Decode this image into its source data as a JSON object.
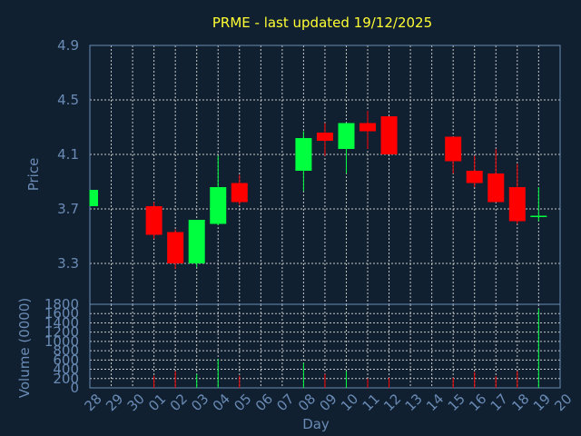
{
  "chart_data": {
    "type": "candlestick",
    "title": "PRME - last updated 19/12/2025",
    "xlabel": "Day",
    "price_panel": {
      "ylabel": "Price",
      "ylim": [
        3.0,
        4.9
      ],
      "yticks": [
        "4.9",
        "4.5",
        "4.1",
        "3.7",
        "3.3"
      ],
      "grid": true
    },
    "volume_panel": {
      "ylabel": "Volume (0000)",
      "ylim": [
        0,
        1800
      ],
      "yticks": [
        "1800",
        "1600",
        "1400",
        "1200",
        "1000",
        "800",
        "600",
        "400",
        "200",
        "0"
      ],
      "grid": true
    },
    "x_labels": [
      "28",
      "29",
      "30",
      "01",
      "02",
      "03",
      "04",
      "05",
      "06",
      "07",
      "08",
      "09",
      "10",
      "11",
      "12",
      "13",
      "14",
      "15",
      "16",
      "17",
      "18",
      "19",
      "20"
    ],
    "candles": [
      {
        "day": "28",
        "open": 3.72,
        "close": 3.84,
        "high": 3.84,
        "low": 3.72,
        "volume": 0
      },
      {
        "day": "01",
        "open": 3.72,
        "close": 3.51,
        "high": 3.75,
        "low": 3.48,
        "volume": 260
      },
      {
        "day": "02",
        "open": 3.53,
        "close": 3.3,
        "high": 3.55,
        "low": 3.26,
        "volume": 360
      },
      {
        "day": "03",
        "open": 3.3,
        "close": 3.62,
        "high": 3.62,
        "low": 3.27,
        "volume": 300
      },
      {
        "day": "04",
        "open": 3.59,
        "close": 3.86,
        "high": 4.09,
        "low": 3.58,
        "volume": 620
      },
      {
        "day": "05",
        "open": 3.89,
        "close": 3.75,
        "high": 3.95,
        "low": 3.73,
        "volume": 260
      },
      {
        "day": "08",
        "open": 3.98,
        "close": 4.22,
        "high": 4.27,
        "low": 3.83,
        "volume": 540
      },
      {
        "day": "09",
        "open": 4.26,
        "close": 4.2,
        "high": 4.33,
        "low": 4.09,
        "volume": 300
      },
      {
        "day": "10",
        "open": 4.14,
        "close": 4.33,
        "high": 4.33,
        "low": 3.96,
        "volume": 360
      },
      {
        "day": "11",
        "open": 4.33,
        "close": 4.27,
        "high": 4.42,
        "low": 4.14,
        "volume": 200
      },
      {
        "day": "12",
        "open": 4.38,
        "close": 4.1,
        "high": 4.38,
        "low": 4.1,
        "volume": 220
      },
      {
        "day": "15",
        "open": 4.23,
        "close": 4.05,
        "high": 4.23,
        "low": 3.96,
        "volume": 220
      },
      {
        "day": "16",
        "open": 3.98,
        "close": 3.89,
        "high": 4.09,
        "low": 3.86,
        "volume": 340
      },
      {
        "day": "17",
        "open": 3.96,
        "close": 3.75,
        "high": 4.14,
        "low": 3.75,
        "volume": 250
      },
      {
        "day": "18",
        "open": 3.86,
        "close": 3.61,
        "high": 4.03,
        "low": 3.59,
        "volume": 360
      },
      {
        "day": "19",
        "open": 3.64,
        "close": 3.65,
        "high": 3.86,
        "low": 3.61,
        "volume": 1700
      }
    ],
    "colors": {
      "up": "#00ff3f",
      "down": "#ff0000",
      "background": "#102030",
      "grid": "#c8c8c8",
      "axis_text": "#6a8bb5",
      "title": "#ffff33"
    }
  }
}
